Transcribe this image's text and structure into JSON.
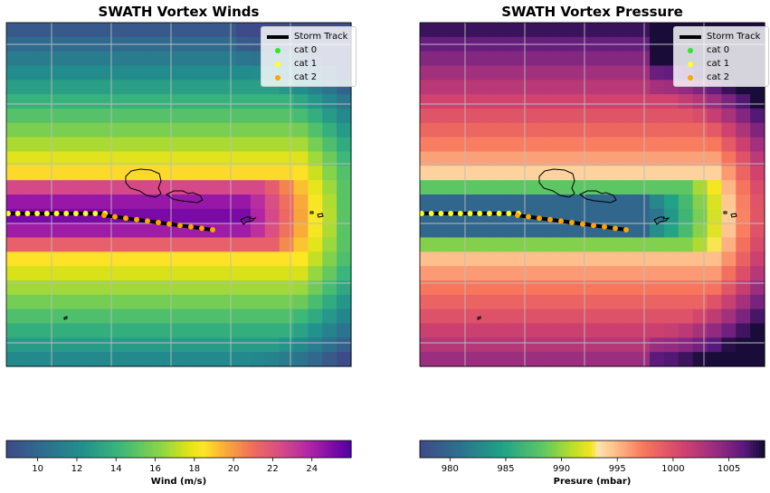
{
  "chart_data": [
    {
      "type": "heatmap",
      "title": "SWATH Vortex Winds",
      "colorbar_label": "Wind (m/s)",
      "colorbar_ticks": [
        10,
        12,
        14,
        16,
        18,
        20,
        22,
        24
      ],
      "clim": [
        8.4,
        26.0
      ],
      "colormap": "plasma_r-like (viridis low → yellow → magenta → purple)",
      "grid": true,
      "legend_placement": "top-right",
      "legend": [
        "Storm Track",
        "cat 0",
        "cat 1",
        "cat 2"
      ]
    },
    {
      "type": "heatmap",
      "title": "SWATH Vortex Pressure",
      "colorbar_label": "Presure (mbar)",
      "colorbar_ticks": [
        980,
        985,
        990,
        995,
        1000,
        1005
      ],
      "clim": [
        977.3,
        1008.2
      ],
      "colormap": "viridis → magma_r",
      "grid": true,
      "legend_placement": "top-right",
      "legend": [
        "Storm Track",
        "cat 0",
        "cat 1",
        "cat 2"
      ]
    }
  ],
  "track": {
    "cat1_points": 11,
    "cat2_points": 11,
    "colors": {
      "cat0": "#2ee62e",
      "cat1": "#ffff22",
      "cat2": "#ffa500",
      "track": "#000000"
    }
  }
}
